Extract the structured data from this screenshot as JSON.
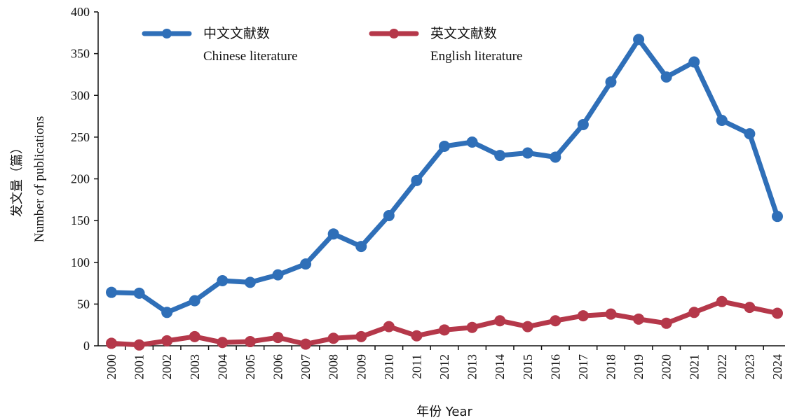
{
  "chart_data": {
    "type": "line",
    "x": [
      "2000",
      "2001",
      "2002",
      "2003",
      "2004",
      "2005",
      "2006",
      "2007",
      "2008",
      "2009",
      "2010",
      "2011",
      "2012",
      "2013",
      "2014",
      "2015",
      "2016",
      "2017",
      "2018",
      "2019",
      "2020",
      "2021",
      "2022",
      "2023",
      "2024"
    ],
    "series": [
      {
        "name": "中文文献数",
        "name_en": "Chinese literature",
        "color": "#2f6fb8",
        "values": [
          64,
          63,
          40,
          54,
          78,
          76,
          85,
          98,
          134,
          119,
          156,
          198,
          239,
          244,
          228,
          231,
          226,
          265,
          316,
          367,
          322,
          340,
          270,
          254,
          155
        ]
      },
      {
        "name": "英文文献数",
        "name_en": "English literature",
        "color": "#b5384a",
        "values": [
          3,
          1,
          6,
          11,
          4,
          5,
          10,
          2,
          9,
          11,
          23,
          12,
          19,
          22,
          30,
          23,
          30,
          36,
          38,
          32,
          27,
          40,
          53,
          46,
          39
        ]
      }
    ],
    "xlabel": "年份 Year",
    "ylabel_cn": "发文量（篇）",
    "ylabel_en": "Number of publications",
    "yticks": [
      0,
      50,
      100,
      150,
      200,
      250,
      300,
      350,
      400
    ],
    "ylim": [
      0,
      400
    ],
    "grid": false,
    "legend_position": "top"
  }
}
